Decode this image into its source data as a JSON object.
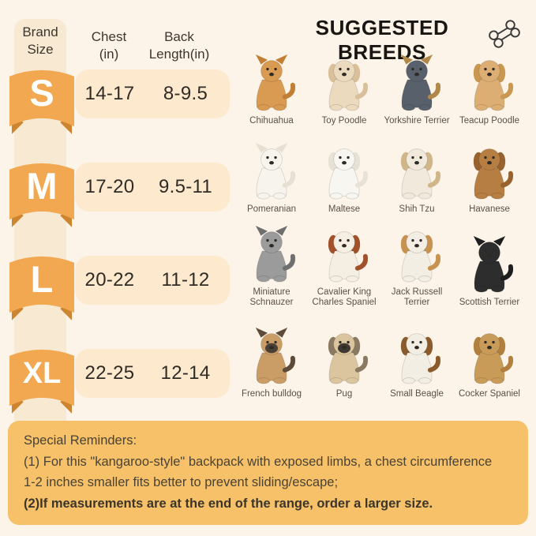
{
  "page": {
    "background": "#FCF4E8"
  },
  "header": {
    "title": "SUGGESTED BREEDS",
    "title_color": "#181512",
    "bone_icon": "bone-icon"
  },
  "size_table": {
    "brand_header": "Brand\nSize",
    "chest_header": "Chest\n(in)",
    "back_header": "Back\nLength(in)",
    "rows": [
      {
        "size": "S",
        "chest": "14-17",
        "back": "8-9.5"
      },
      {
        "size": "M",
        "chest": "17-20",
        "back": "9.5-11"
      },
      {
        "size": "L",
        "chest": "20-22",
        "back": "11-12"
      },
      {
        "size": "XL",
        "chest": "22-25",
        "back": "12-14"
      }
    ],
    "colors": {
      "ribbon": "#F2A850",
      "ribbon_fold": "#CE8530",
      "pill": "#FCE9CE",
      "strip": "#F8E9D3",
      "letter": "#FFFFFF"
    }
  },
  "breeds": [
    {
      "name": "Chihuahua",
      "body": "#D99A52",
      "accent": "#C07F35",
      "ear": "up"
    },
    {
      "name": "Toy Poodle",
      "body": "#EBDABD",
      "accent": "#D9C09A",
      "ear": "down"
    },
    {
      "name": "Yorkshire Terrier",
      "body": "#57606B",
      "accent": "#B08849",
      "ear": "up"
    },
    {
      "name": "Teacup Poodle",
      "body": "#DCAE74",
      "accent": "#C99750",
      "ear": "down"
    },
    {
      "name": "Pomeranian",
      "body": "#F7F4EE",
      "accent": "#E7DFD1",
      "ear": "up"
    },
    {
      "name": "Maltese",
      "body": "#F8F6F1",
      "accent": "#E8E2D6",
      "ear": "down"
    },
    {
      "name": "Shih Tzu",
      "body": "#F1E9DB",
      "accent": "#D0B688",
      "ear": "down"
    },
    {
      "name": "Havanese",
      "body": "#B67E43",
      "accent": "#97622E",
      "ear": "down"
    },
    {
      "name": "Miniature\nSchnauzer",
      "body": "#9B9B9B",
      "accent": "#6F6F6F",
      "ear": "up"
    },
    {
      "name": "Cavalier King\nCharles Spaniel",
      "body": "#F4EEE3",
      "accent": "#A2522B",
      "ear": "down"
    },
    {
      "name": "Jack Russell\nTerrier",
      "body": "#F3EEE4",
      "accent": "#C89250",
      "ear": "down"
    },
    {
      "name": "Scottish Terrier",
      "body": "#2D2D2D",
      "accent": "#1E1E1E",
      "ear": "up"
    },
    {
      "name": "French bulldog",
      "body": "#CA9D67",
      "accent": "#5E4A38",
      "ear": "up",
      "face": "#4A4038"
    },
    {
      "name": "Pug",
      "body": "#DBC59E",
      "accent": "#8A7A62",
      "ear": "down",
      "face": "#3F3832"
    },
    {
      "name": "Small Beagle",
      "body": "#F3EEE3",
      "accent": "#8B5B2C",
      "ear": "down"
    },
    {
      "name": "Cocker Spaniel",
      "body": "#C89B59",
      "accent": "#B2803E",
      "ear": "down"
    }
  ],
  "reminders": {
    "background": "#F6C169",
    "lines": [
      {
        "text": "Special Reminders:",
        "bold": false
      },
      {
        "text": "(1) For this \"kangaroo-style\" backpack with exposed limbs, a chest circumference",
        "bold": false
      },
      {
        "text": "1-2 inches smaller fits better to prevent sliding/escape;",
        "bold": false
      },
      {
        "text": "(2)If measurements are at the end of the range, order a larger size.",
        "bold": true
      }
    ]
  }
}
